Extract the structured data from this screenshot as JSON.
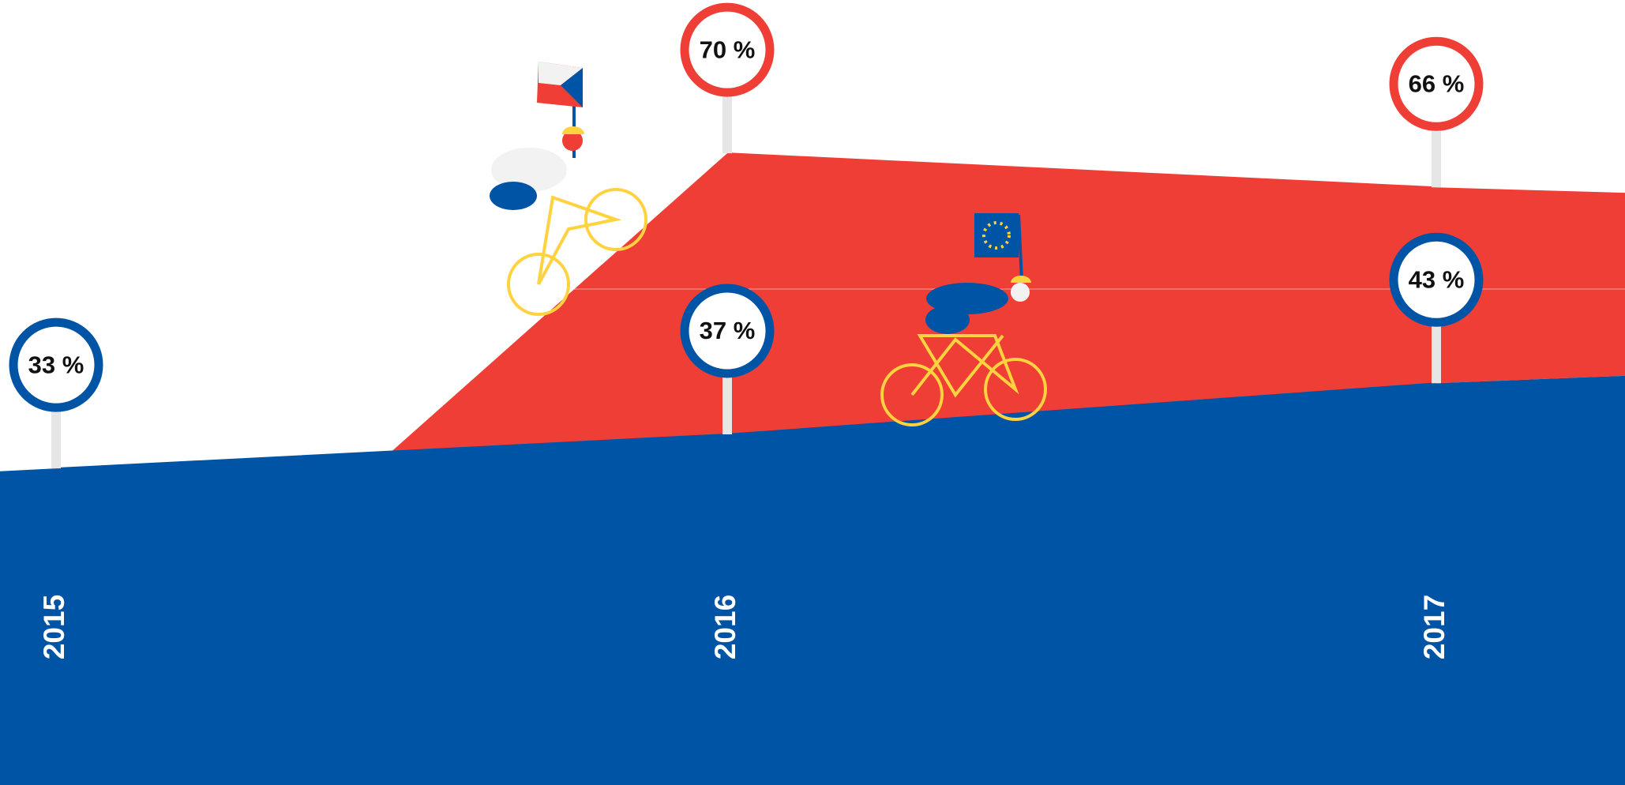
{
  "chart_data": {
    "type": "area",
    "categories": [
      "2015",
      "2016",
      "2017"
    ],
    "series": [
      {
        "color": "#0054a6",
        "values": [
          33,
          37,
          43
        ],
        "value_labels": [
          "33 %",
          "37 %",
          "43 %"
        ]
      },
      {
        "color": "#ef3e36",
        "values": [
          null,
          70,
          66
        ],
        "value_labels": [
          null,
          "70 %",
          "66 %"
        ]
      }
    ],
    "ylim": [
      0,
      88
    ]
  }
}
